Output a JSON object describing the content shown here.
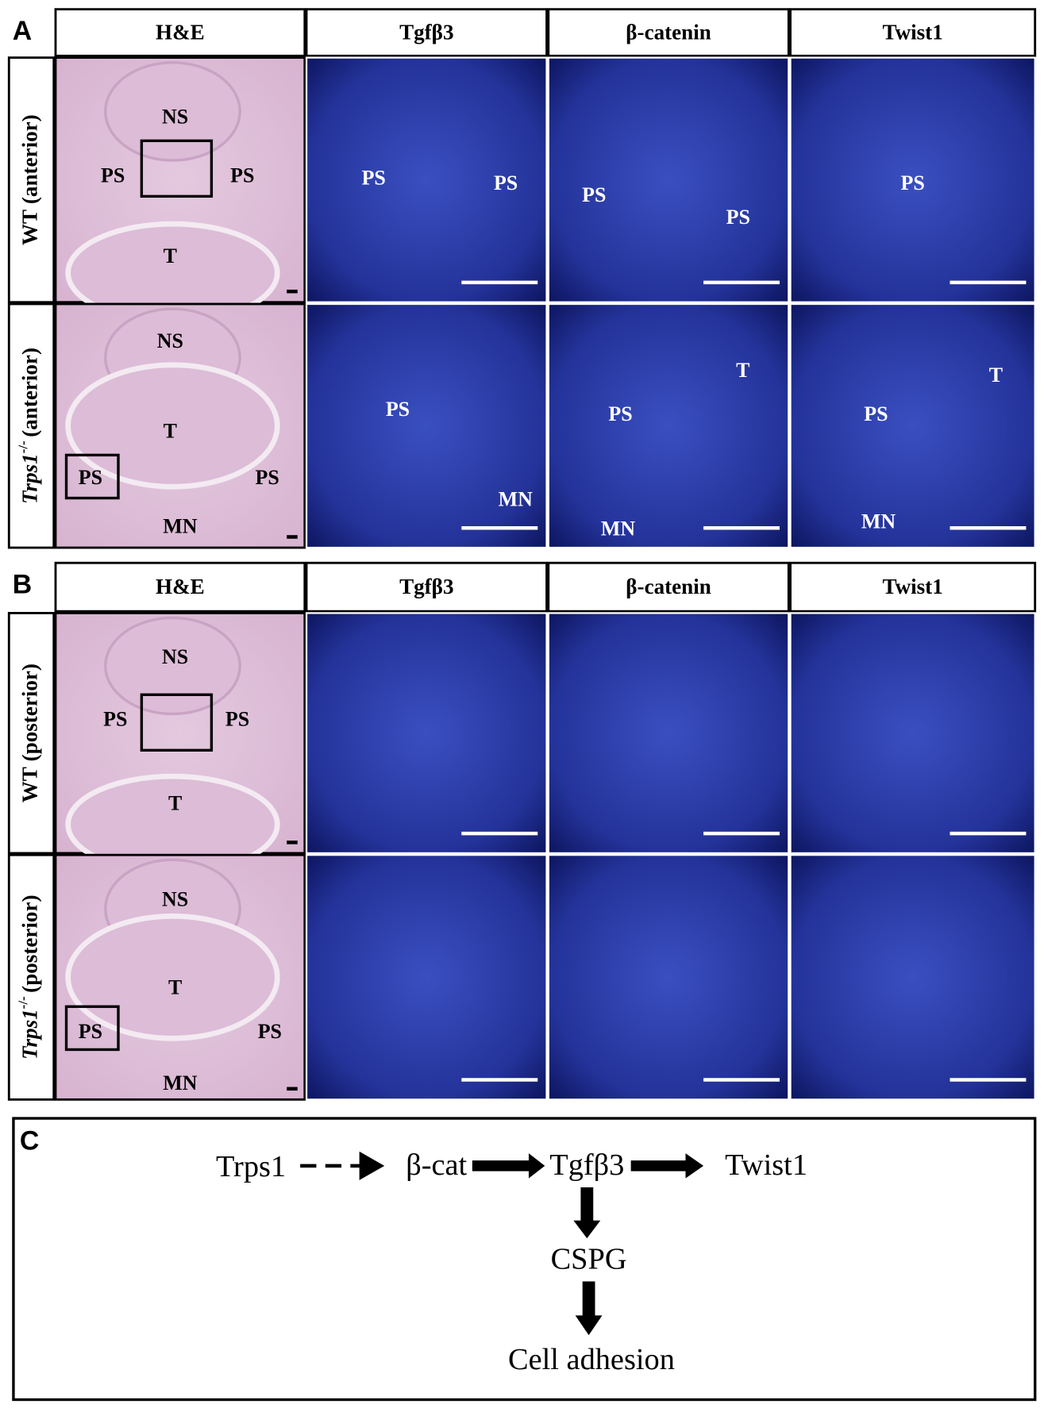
{
  "panels": [
    {
      "letter": "A",
      "columns": [
        "H&E",
        "Tgfβ3",
        "β-catenin",
        "Twist1"
      ],
      "rows": [
        {
          "genotype": "WT",
          "label": "(anterior)",
          "cells": [
            [
              "NS",
              "PS",
              "PS",
              "T"
            ],
            [
              "PS",
              "PS"
            ],
            [
              "PS",
              "PS"
            ],
            [
              "PS"
            ]
          ]
        },
        {
          "genotype": "Trps1",
          "superscript": "-/-",
          "label": "(anterior)",
          "cells": [
            [
              "NS",
              "T",
              "PS",
              "PS",
              "MN"
            ],
            [
              "PS",
              "MN"
            ],
            [
              "T",
              "PS",
              "MN"
            ],
            [
              "T",
              "PS",
              "MN"
            ]
          ]
        }
      ]
    },
    {
      "letter": "B",
      "columns": [
        "H&E",
        "Tgfβ3",
        "β-catenin",
        "Twist1"
      ],
      "rows": [
        {
          "genotype": "WT",
          "label": "(posterior)",
          "cells": [
            [
              "NS",
              "PS",
              "PS",
              "T"
            ],
            [],
            [],
            []
          ]
        },
        {
          "genotype": "Trps1",
          "superscript": "-/-",
          "label": "(posterior)",
          "cells": [
            [
              "NS",
              "T",
              "PS",
              "PS",
              "MN"
            ],
            [],
            [],
            []
          ]
        }
      ]
    }
  ],
  "diagram": {
    "letter": "C",
    "nodes": [
      "Trps1",
      "β-cat",
      "Tgfβ3",
      "Twist1",
      "CSPG",
      "Cell adhesion"
    ]
  }
}
